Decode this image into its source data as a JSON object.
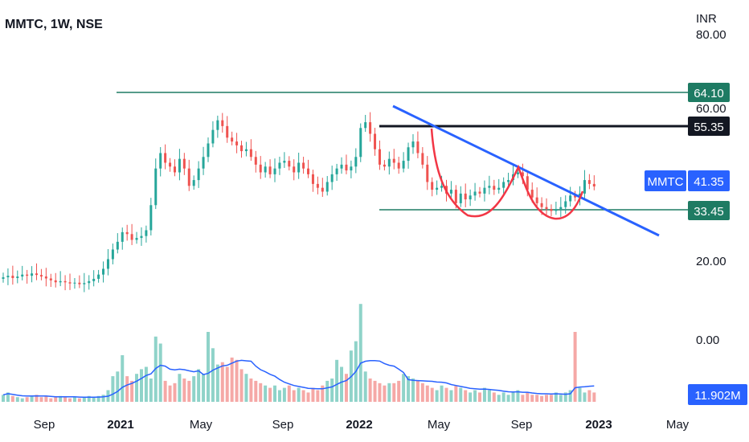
{
  "header": {
    "title": "MMTC, 1W, NSE"
  },
  "price_axis": {
    "unit": "INR",
    "ticks": [
      "80.00",
      "60.00",
      "20.00",
      "0.00"
    ]
  },
  "time_axis": {
    "labels": [
      "Sep",
      "2021",
      "May",
      "Sep",
      "2022",
      "May",
      "Sep",
      "2023",
      "May"
    ]
  },
  "badges": {
    "resistance_high": "64.10",
    "resistance_mid": "55.35",
    "symbol": "MMTC",
    "last_price": "41.35",
    "support": "33.45",
    "volume_ma": "11.902M"
  },
  "colors": {
    "up": "#26a69a",
    "down": "#ef5350",
    "volume_up": "#8fd3c9",
    "volume_down": "#f5a8a6",
    "horizontal_lines": "#1e7b63",
    "black_line": "#131722",
    "trend_line": "#2962ff",
    "pattern": "#f23645",
    "badge_blue": "#2962ff",
    "badge_dark": "#131722",
    "badge_green": "#1e7b63"
  },
  "chart_data": {
    "type": "candlestick",
    "symbol": "MMTC",
    "interval": "1W",
    "exchange": "NSE",
    "price_scale": {
      "ticks": [
        80,
        60,
        20,
        0
      ],
      "unit": "INR"
    },
    "horizontal_levels": [
      64.1,
      55.35,
      33.45
    ],
    "last_price": 41.35,
    "volume_ma_label": "11.902M",
    "closes": [
      17.8,
      18.2,
      17.6,
      18.0,
      18.5,
      18.2,
      18.8,
      18.4,
      18.0,
      17.5,
      17.0,
      16.5,
      16.8,
      16.5,
      16.2,
      16.4,
      16.0,
      16.3,
      16.8,
      17.4,
      18.5,
      20.0,
      22.5,
      25.0,
      27.0,
      29.5,
      29.0,
      27.5,
      28.0,
      28.5,
      30.0,
      36.5,
      46.0,
      50.0,
      47.5,
      46.5,
      45.0,
      48.5,
      46.0,
      41.5,
      43.0,
      46.0,
      49.0,
      52.5,
      56.0,
      58.5,
      57.0,
      54.0,
      53.0,
      52.0,
      50.5,
      51.0,
      49.0,
      47.0,
      45.0,
      46.5,
      44.5,
      46.0,
      47.5,
      48.0,
      46.5,
      45.0,
      47.5,
      46.0,
      44.5,
      42.0,
      41.0,
      40.0,
      42.5,
      44.5,
      46.0,
      47.0,
      45.5,
      46.5,
      49.0,
      56.5,
      58.0,
      55.0,
      51.0,
      47.0,
      46.5,
      48.5,
      47.5,
      46.0,
      48.0,
      51.5,
      53.0,
      50.0,
      47.0,
      42.5,
      40.5,
      41.0,
      41.5,
      39.5,
      40.5,
      37.0,
      39.5,
      38.0,
      39.0,
      40.0,
      39.5,
      41.0,
      41.5,
      40.5,
      41.0,
      42.5,
      43.0,
      44.5,
      45.0,
      44.0,
      40.5,
      38.5,
      37.0,
      36.0,
      35.5,
      35.0,
      35.5,
      36.0,
      37.5,
      39.0,
      38.5,
      39.5,
      43.0,
      42.0,
      41.35
    ],
    "volumes": [
      3,
      4,
      2.5,
      2,
      1.5,
      2,
      2.5,
      3,
      2,
      2.5,
      1.5,
      2,
      2.5,
      2,
      1.5,
      2,
      1.5,
      2,
      2.5,
      2,
      2.5,
      3,
      5,
      11,
      13,
      20,
      11,
      9,
      12,
      14,
      15,
      10,
      28,
      25,
      9,
      7,
      8,
      12,
      10,
      9,
      11,
      14,
      12,
      30,
      23,
      16,
      17,
      15,
      19,
      18,
      14,
      12,
      10,
      9,
      8,
      7,
      6,
      7,
      5,
      6,
      7,
      5,
      6,
      5,
      4,
      6,
      5,
      7,
      9,
      10,
      18,
      15,
      12,
      22,
      26,
      42,
      13,
      10,
      9,
      8,
      7,
      8,
      8,
      9,
      12,
      11,
      10,
      9,
      8,
      7,
      6,
      5,
      7,
      6,
      5,
      7,
      6,
      5,
      4,
      5,
      4,
      6,
      5,
      4,
      3,
      4,
      3,
      4,
      5,
      3,
      4,
      3,
      3,
      2.5,
      3,
      3,
      4,
      3,
      4,
      5,
      30,
      6,
      4,
      5,
      4
    ]
  }
}
